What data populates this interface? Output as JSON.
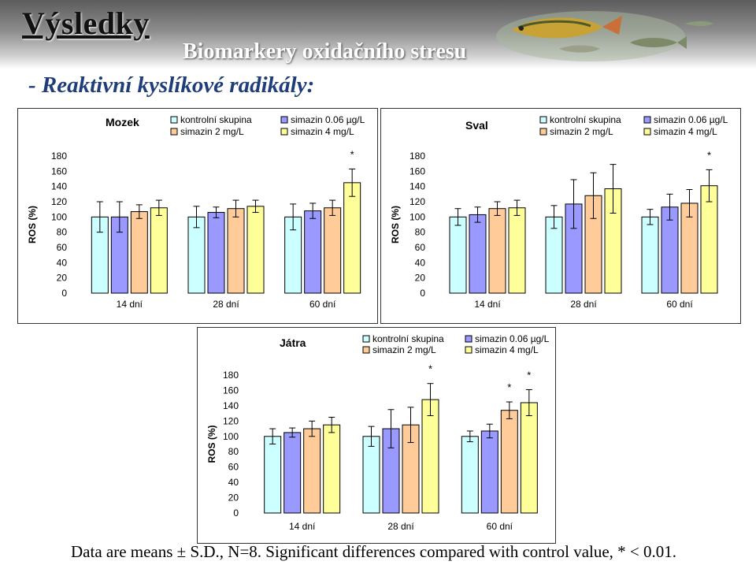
{
  "slide": {
    "title": "Výsledky",
    "subtitle": "Biomarkery oxidačního stresu",
    "heading": "- Reaktivní kyslíkové radikály:",
    "footnote": "Data are means ± S.D., N=8. Significant differences compared with control value, * < 0.01."
  },
  "colors": {
    "kontrolni": "#ccffff",
    "simazin_006": "#9999ff",
    "simazin_2": "#ffcc99",
    "simazin_4": "#ffff99"
  },
  "chart_data": [
    {
      "type": "bar",
      "title": "Mozek",
      "ylabel": "ROS (%)",
      "ylim": [
        0,
        180
      ],
      "yticks": [
        0,
        20,
        40,
        60,
        80,
        100,
        120,
        140,
        160,
        180
      ],
      "categories": [
        "14 dní",
        "28 dní",
        "60 dní"
      ],
      "legend_position": "top-right",
      "series": [
        {
          "name": "kontrolní skupina",
          "color": "#ccffff",
          "values": [
            100,
            100,
            100
          ],
          "errors": [
            20,
            14,
            17
          ],
          "significant": [
            false,
            false,
            false
          ]
        },
        {
          "name": "simazin 0.06 µg/L",
          "color": "#9999ff",
          "values": [
            100,
            106,
            108
          ],
          "errors": [
            20,
            7,
            10
          ],
          "significant": [
            false,
            false,
            false
          ]
        },
        {
          "name": "simazin 2 mg/L",
          "color": "#ffcc99",
          "values": [
            107,
            111,
            112
          ],
          "errors": [
            9,
            11,
            10
          ],
          "significant": [
            false,
            false,
            false
          ]
        },
        {
          "name": "simazin 4 mg/L",
          "color": "#ffff99",
          "values": [
            112,
            114,
            145
          ],
          "errors": [
            10,
            8,
            18
          ],
          "significant": [
            false,
            false,
            true
          ]
        }
      ]
    },
    {
      "type": "bar",
      "title": "Sval",
      "ylabel": "ROS (%)",
      "ylim": [
        0,
        180
      ],
      "yticks": [
        0,
        20,
        40,
        60,
        80,
        100,
        120,
        140,
        160,
        180
      ],
      "categories": [
        "14 dní",
        "28 dní",
        "60 dní"
      ],
      "legend_position": "top-right",
      "series": [
        {
          "name": "kontrolní skupina",
          "color": "#ccffff",
          "values": [
            100,
            100,
            100
          ],
          "errors": [
            11,
            15,
            10
          ],
          "significant": [
            false,
            false,
            false
          ]
        },
        {
          "name": "simazin 0.06 µg/L",
          "color": "#9999ff",
          "values": [
            103,
            117,
            113
          ],
          "errors": [
            10,
            32,
            17
          ],
          "significant": [
            false,
            false,
            false
          ]
        },
        {
          "name": "simazin 2 mg/L",
          "color": "#ffcc99",
          "values": [
            111,
            128,
            118
          ],
          "errors": [
            9,
            30,
            18
          ],
          "significant": [
            false,
            false,
            false
          ]
        },
        {
          "name": "simazin 4 mg/L",
          "color": "#ffff99",
          "values": [
            112,
            137,
            141
          ],
          "errors": [
            10,
            32,
            21
          ],
          "significant": [
            false,
            false,
            true
          ]
        }
      ]
    },
    {
      "type": "bar",
      "title": "Játra",
      "ylabel": "ROS (%)",
      "ylim": [
        0,
        180
      ],
      "yticks": [
        0,
        20,
        40,
        60,
        80,
        100,
        120,
        140,
        160,
        180
      ],
      "categories": [
        "14 dní",
        "28 dní",
        "60 dní"
      ],
      "legend_position": "top-right",
      "series": [
        {
          "name": "kontrolní skupina",
          "color": "#ccffff",
          "values": [
            100,
            100,
            100
          ],
          "errors": [
            10,
            13,
            7
          ],
          "significant": [
            false,
            false,
            false
          ]
        },
        {
          "name": "simazin 0.06 µg/L",
          "color": "#9999ff",
          "values": [
            105,
            110,
            107
          ],
          "errors": [
            6,
            25,
            9
          ],
          "significant": [
            false,
            false,
            false
          ]
        },
        {
          "name": "simazin 2 mg/L",
          "color": "#ffcc99",
          "values": [
            110,
            115,
            134
          ],
          "errors": [
            10,
            23,
            11
          ],
          "significant": [
            false,
            false,
            true
          ]
        },
        {
          "name": "simazin 4 mg/L",
          "color": "#ffff99",
          "values": [
            115,
            148,
            144
          ],
          "errors": [
            10,
            21,
            17
          ],
          "significant": [
            false,
            true,
            true
          ]
        }
      ]
    }
  ]
}
